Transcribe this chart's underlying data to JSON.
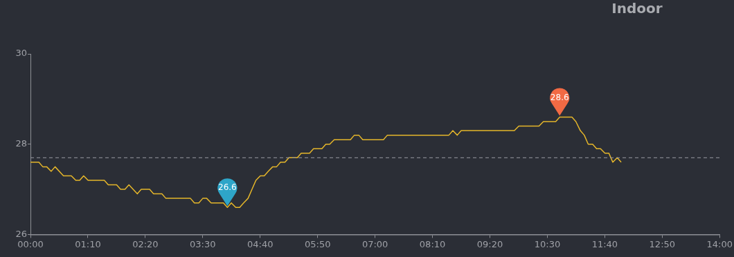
{
  "chart_data": {
    "type": "line",
    "title": "Indoor",
    "x": [
      0,
      0.17,
      0.25,
      0.33,
      0.42,
      0.5,
      0.67,
      0.83,
      0.92,
      1,
      1.08,
      1.17,
      1.5,
      1.58,
      1.75,
      1.83,
      1.92,
      2,
      2.17,
      2.25,
      2.42,
      2.5,
      2.67,
      2.75,
      3.25,
      3.33,
      3.42,
      3.5,
      3.58,
      3.67,
      3.92,
      4,
      4.08,
      4.17,
      4.25,
      4.33,
      4.42,
      4.5,
      4.58,
      4.67,
      4.75,
      4.83,
      4.92,
      5,
      5.08,
      5.17,
      5.25,
      5.42,
      5.5,
      5.67,
      5.75,
      5.92,
      6,
      6.08,
      6.17,
      6.5,
      6.58,
      6.67,
      6.75,
      7.17,
      7.25,
      8.5,
      8.58,
      8.67,
      8.75,
      9.83,
      9.92,
      10.33,
      10.42,
      10.67,
      10.75,
      11,
      11.08,
      11.17,
      11.25,
      11.33,
      11.42,
      11.5,
      11.58,
      11.67,
      11.75,
      11.83,
      11.92,
      12
    ],
    "series": [
      {
        "color": "#e5b62a",
        "values": [
          27.6,
          27.6,
          27.5,
          27.5,
          27.4,
          27.5,
          27.3,
          27.3,
          27.2,
          27.2,
          27.3,
          27.2,
          27.2,
          27.1,
          27.1,
          27.0,
          27.0,
          27.1,
          26.9,
          27.0,
          27.0,
          26.9,
          26.9,
          26.8,
          26.8,
          26.7,
          26.7,
          26.8,
          26.8,
          26.7,
          26.7,
          26.6,
          26.7,
          26.6,
          26.6,
          26.7,
          26.8,
          27.0,
          27.2,
          27.3,
          27.3,
          27.4,
          27.5,
          27.5,
          27.6,
          27.6,
          27.7,
          27.7,
          27.8,
          27.8,
          27.9,
          27.9,
          28.0,
          28.0,
          28.1,
          28.1,
          28.2,
          28.2,
          28.1,
          28.1,
          28.2,
          28.2,
          28.3,
          28.2,
          28.3,
          28.3,
          28.4,
          28.4,
          28.5,
          28.5,
          28.6,
          28.6,
          28.5,
          28.3,
          28.2,
          28.0,
          28.0,
          27.9,
          27.9,
          27.8,
          27.8,
          27.6,
          27.7,
          27.6
        ]
      }
    ],
    "xlim": [
      0,
      14
    ],
    "xticks": [
      {
        "value": 0,
        "label": "00:00"
      },
      {
        "value": 1.1667,
        "label": "01:10"
      },
      {
        "value": 2.3333,
        "label": "02:20"
      },
      {
        "value": 3.5,
        "label": "03:30"
      },
      {
        "value": 4.6667,
        "label": "04:40"
      },
      {
        "value": 5.8333,
        "label": "05:50"
      },
      {
        "value": 7,
        "label": "07:00"
      },
      {
        "value": 8.1667,
        "label": "08:10"
      },
      {
        "value": 9.3333,
        "label": "09:20"
      },
      {
        "value": 10.5,
        "label": "10:30"
      },
      {
        "value": 11.6667,
        "label": "11:40"
      },
      {
        "value": 12.8333,
        "label": "12:50"
      },
      {
        "value": 14,
        "label": "14:00"
      }
    ],
    "ylim": [
      26,
      30
    ],
    "yticks": [
      26,
      28,
      30
    ],
    "ref_lines": [
      {
        "axis": "y",
        "value": 27.7,
        "color": "#9a9ca3",
        "line_style": "dashed"
      }
    ],
    "annotations": [
      {
        "text": "28.6",
        "x": 10.75,
        "y": 28.6
      },
      {
        "text": "26.6",
        "x": 4,
        "y": 26.6
      }
    ],
    "marker": "none"
  }
}
